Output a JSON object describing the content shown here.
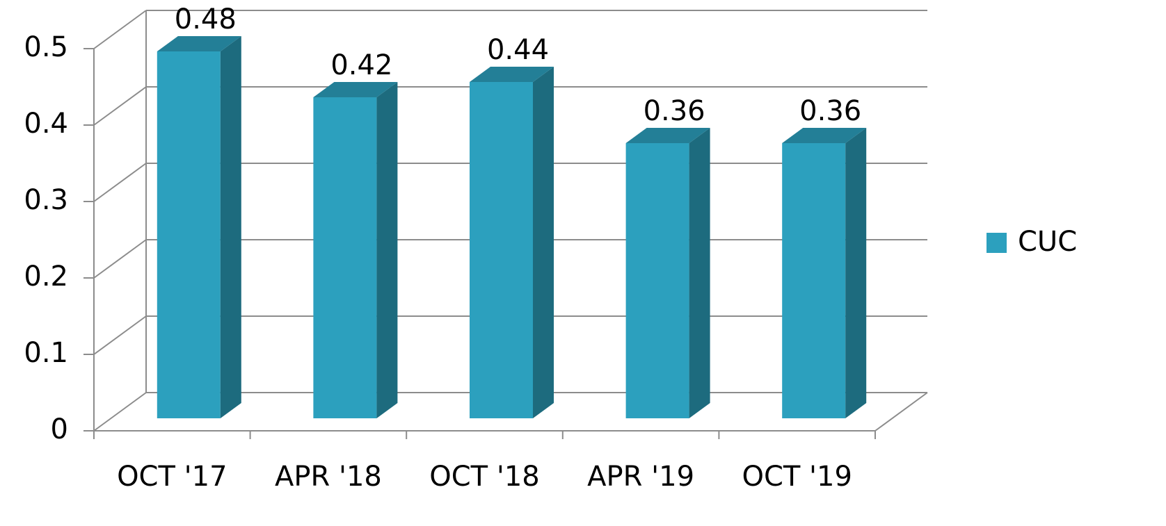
{
  "chart_data": {
    "type": "bar3d",
    "categories": [
      "OCT '17",
      "APR '18",
      "OCT '18",
      "APR '19",
      "OCT '19"
    ],
    "series": [
      {
        "name": "CUC",
        "color": "#2ca0be",
        "values": [
          0.48,
          0.42,
          0.44,
          0.36,
          0.36
        ]
      }
    ],
    "ylim": [
      0,
      0.5
    ],
    "yticks": [
      0,
      0.1,
      0.2,
      0.3,
      0.4,
      0.5
    ],
    "grid": true,
    "legend": "right"
  }
}
